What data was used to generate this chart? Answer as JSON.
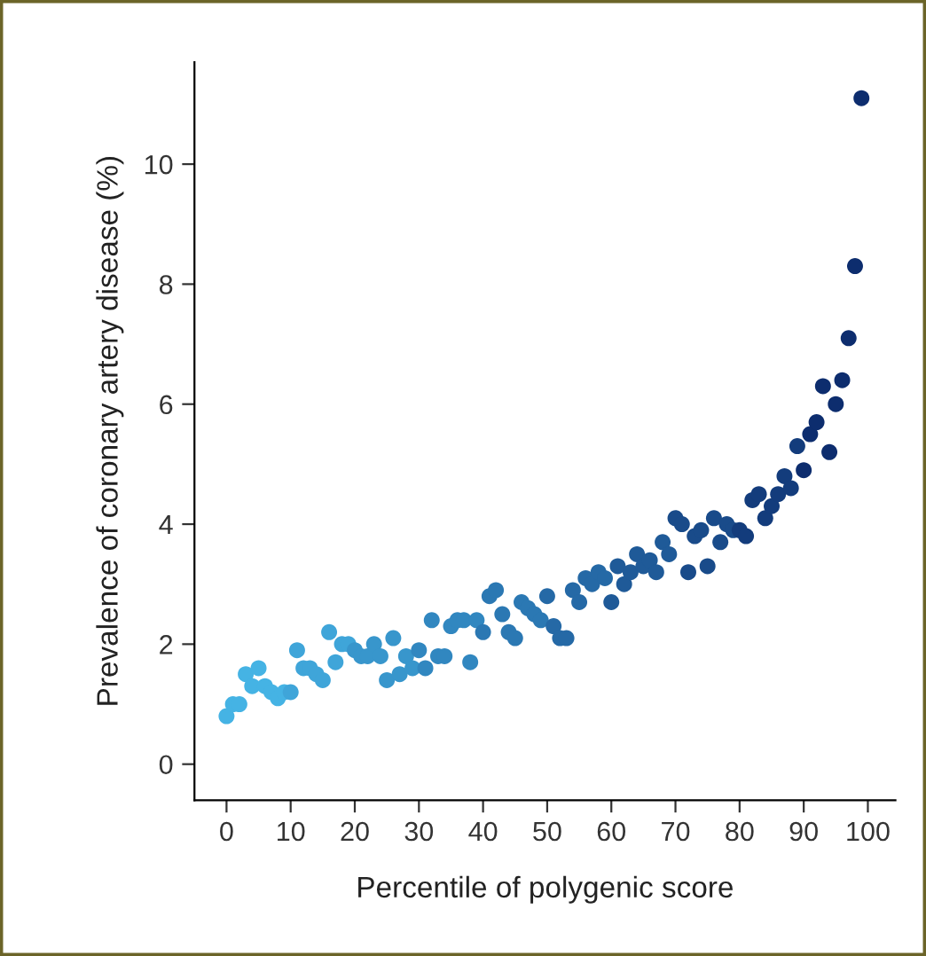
{
  "chart_data": {
    "type": "scatter",
    "xlabel": "Percentile of polygenic score",
    "ylabel": "Prevalence of coronary artery disease (%)",
    "x": [
      0,
      1,
      2,
      3,
      4,
      5,
      6,
      7,
      8,
      9,
      10,
      11,
      12,
      13,
      14,
      15,
      16,
      17,
      18,
      19,
      20,
      21,
      22,
      23,
      24,
      25,
      26,
      27,
      28,
      29,
      30,
      31,
      32,
      33,
      34,
      35,
      36,
      37,
      38,
      39,
      40,
      41,
      42,
      43,
      44,
      45,
      46,
      47,
      48,
      49,
      50,
      51,
      52,
      53,
      54,
      55,
      56,
      57,
      58,
      59,
      60,
      61,
      62,
      63,
      64,
      65,
      66,
      67,
      68,
      69,
      70,
      71,
      72,
      73,
      74,
      75,
      76,
      77,
      78,
      79,
      80,
      81,
      82,
      83,
      84,
      85,
      86,
      87,
      88,
      89,
      90,
      91,
      92,
      93,
      94,
      95,
      96,
      97,
      98,
      99
    ],
    "values": [
      0.8,
      1.0,
      1.0,
      1.5,
      1.3,
      1.6,
      1.3,
      1.2,
      1.1,
      1.2,
      1.2,
      1.9,
      1.6,
      1.6,
      1.5,
      1.4,
      2.2,
      1.7,
      2.0,
      2.0,
      1.9,
      1.8,
      1.8,
      2.0,
      1.8,
      1.4,
      2.1,
      1.5,
      1.8,
      1.6,
      1.9,
      1.6,
      2.4,
      1.8,
      1.8,
      2.3,
      2.4,
      2.4,
      1.7,
      2.4,
      2.2,
      2.8,
      2.9,
      2.5,
      2.2,
      2.1,
      2.7,
      2.6,
      2.5,
      2.4,
      2.8,
      2.3,
      2.1,
      2.1,
      2.9,
      2.7,
      3.1,
      3.0,
      3.2,
      3.1,
      2.7,
      3.3,
      3.0,
      3.2,
      3.5,
      3.3,
      3.4,
      3.2,
      3.7,
      3.5,
      4.1,
      4.0,
      3.2,
      3.8,
      3.9,
      3.3,
      4.1,
      3.7,
      4.0,
      3.9,
      3.9,
      3.8,
      4.4,
      4.5,
      4.1,
      4.3,
      4.5,
      4.8,
      4.6,
      5.3,
      4.9,
      5.5,
      5.7,
      6.3,
      5.2,
      6.0,
      6.4,
      7.1,
      8.3,
      11.1
    ],
    "colors": [
      "#45b3e4",
      "#45b3e4",
      "#45b3e4",
      "#45b3e4",
      "#45b3e4",
      "#45b3e4",
      "#45b3e4",
      "#45b3e4",
      "#45b3e4",
      "#45b3e4",
      "#3fa5d9",
      "#3fa5d9",
      "#3fa5d9",
      "#3fa5d9",
      "#3fa5d9",
      "#3fa5d9",
      "#3fa5d9",
      "#3fa5d9",
      "#3fa5d9",
      "#3fa5d9",
      "#3896cc",
      "#3896cc",
      "#3896cc",
      "#3896cc",
      "#3896cc",
      "#3896cc",
      "#3896cc",
      "#3896cc",
      "#3896cc",
      "#3896cc",
      "#3187c0",
      "#3187c0",
      "#3187c0",
      "#3187c0",
      "#3187c0",
      "#3187c0",
      "#3187c0",
      "#3187c0",
      "#3187c0",
      "#3187c0",
      "#2b78b3",
      "#2b78b3",
      "#2b78b3",
      "#2b78b3",
      "#2b78b3",
      "#2b78b3",
      "#2b78b3",
      "#2b78b3",
      "#2b78b3",
      "#2b78b3",
      "#2569a6",
      "#2569a6",
      "#2569a6",
      "#2569a6",
      "#2569a6",
      "#2569a6",
      "#2569a6",
      "#2569a6",
      "#2569a6",
      "#2569a6",
      "#1f5a98",
      "#1f5a98",
      "#1f5a98",
      "#1f5a98",
      "#1f5a98",
      "#1f5a98",
      "#1f5a98",
      "#1f5a98",
      "#1f5a98",
      "#1f5a98",
      "#194b8a",
      "#194b8a",
      "#194b8a",
      "#194b8a",
      "#194b8a",
      "#194b8a",
      "#194b8a",
      "#194b8a",
      "#194b8a",
      "#194b8a",
      "#133c7c",
      "#133c7c",
      "#133c7c",
      "#133c7c",
      "#133c7c",
      "#133c7c",
      "#133c7c",
      "#133c7c",
      "#133c7c",
      "#133c7c",
      "#0d2d6e",
      "#0d2d6e",
      "#0d2d6e",
      "#0d2d6e",
      "#0d2d6e",
      "#0d2d6e",
      "#0d2d6e",
      "#0d2d6e",
      "#0d2d6e",
      "#0d2d6e"
    ],
    "marker": "circle",
    "grid": false,
    "legend": false,
    "xlim": [
      -5,
      104.3
    ],
    "ylim": [
      -0.6,
      11.7
    ],
    "xticks": [
      0,
      10,
      20,
      30,
      40,
      50,
      60,
      70,
      80,
      90,
      100
    ],
    "yticks": [
      0,
      2,
      4,
      6,
      8,
      10
    ]
  }
}
